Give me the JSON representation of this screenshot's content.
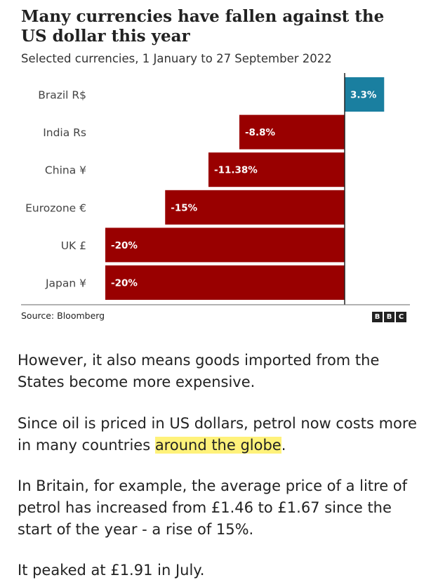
{
  "header": {
    "title": "Many currencies have fallen against the US dollar this year",
    "subtitle": "Selected currencies, 1 January to 27 September 2022"
  },
  "chart_data": {
    "type": "bar",
    "orientation": "horizontal",
    "categories": [
      "Brazil R$",
      "India Rs",
      "China ¥",
      "Eurozone €",
      "UK £",
      "Japan ¥"
    ],
    "values": [
      3.3,
      -8.8,
      -11.38,
      -15,
      -20,
      -20
    ],
    "data_labels": [
      "3.3%",
      "-8.8%",
      "-11.38%",
      "-15%",
      "-20%",
      "-20%"
    ],
    "xlim": [
      -20.5,
      3.3
    ],
    "grid": false,
    "colors": {
      "positive": "#1a7fa0",
      "negative": "#990000",
      "axis": "#222222",
      "label": "#ffffff",
      "category_text": "#444444"
    }
  },
  "footer": {
    "source": "Source: Bloomberg",
    "logo_letters": [
      "B",
      "B",
      "C"
    ]
  },
  "article": {
    "p1": "However, it also means goods imported from the States become more expensive.",
    "p2_before": "Since oil is priced in US dollars, petrol now costs more in many countries ",
    "p2_link": "around the globe",
    "p2_after": ".",
    "p3": "In Britain, for example, the average price of a litre of petrol has increased from £1.46 to £1.67 since the start of the year - a rise of 15%.",
    "p4": "It peaked at £1.91 in July."
  }
}
